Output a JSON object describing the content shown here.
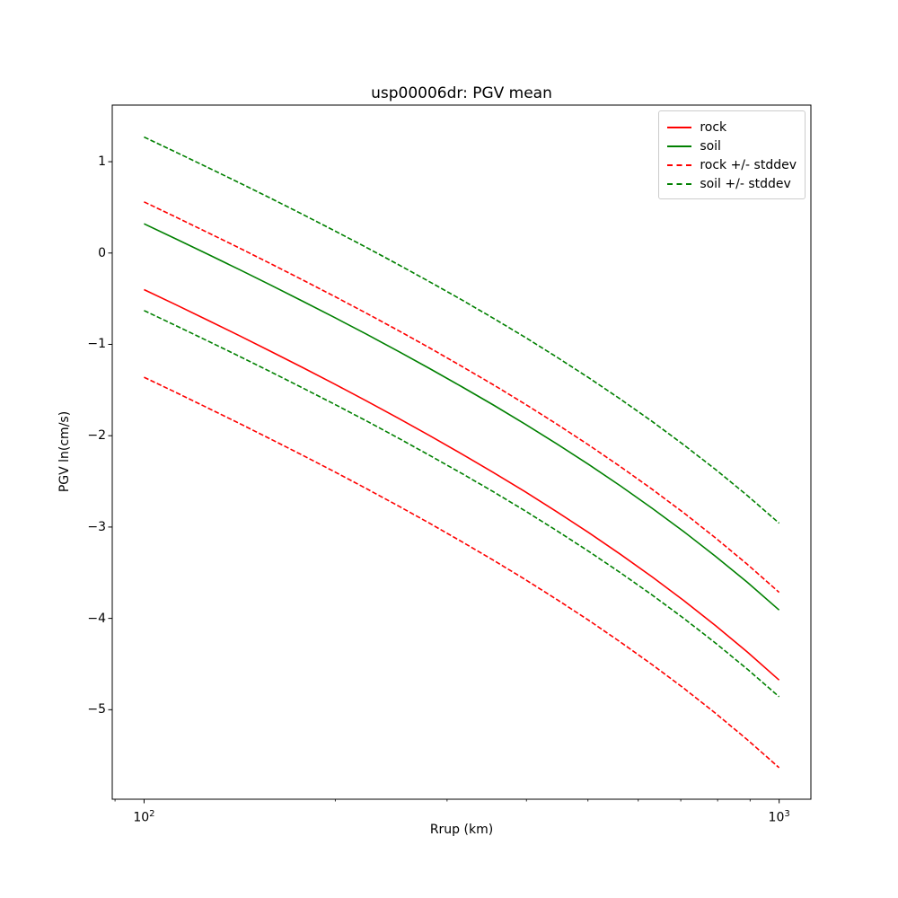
{
  "page": {
    "background": "#ffffff"
  },
  "chart_data": {
    "type": "line",
    "title": "usp00006dr: PGV mean",
    "xlabel": "Rrup (km)",
    "ylabel": "PGV ln(cm/s)",
    "xscale": "log",
    "yscale": "linear",
    "grid": false,
    "xlim": [
      89.1,
      1122
    ],
    "ylim": [
      -5.98,
      1.62
    ],
    "xticks": [
      {
        "value": 100,
        "base": "10",
        "exp": "2"
      },
      {
        "value": 1000,
        "base": "10",
        "exp": "3"
      }
    ],
    "yticks": [
      1,
      0,
      -1,
      -2,
      -3,
      -4,
      -5
    ],
    "x": [
      100,
      112.2,
      125.9,
      141.3,
      158.5,
      177.8,
      199.5,
      223.9,
      251.2,
      281.8,
      316.2,
      354.8,
      398.1,
      446.7,
      501.2,
      562.3,
      631,
      708,
      794.3,
      891.3,
      1000
    ],
    "series": [
      {
        "name": "rock",
        "color": "#ff0000",
        "style": "solid",
        "values": [
          -0.4,
          -0.566,
          -0.735,
          -0.905,
          -1.079,
          -1.255,
          -1.435,
          -1.619,
          -1.807,
          -2.0,
          -2.199,
          -2.403,
          -2.614,
          -2.833,
          -3.061,
          -3.298,
          -3.546,
          -3.806,
          -4.08,
          -4.369,
          -4.675
        ]
      },
      {
        "name": "soil",
        "color": "#008000",
        "style": "solid",
        "values": [
          0.32,
          0.155,
          -0.012,
          -0.181,
          -0.353,
          -0.528,
          -0.706,
          -0.888,
          -1.075,
          -1.266,
          -1.462,
          -1.664,
          -1.873,
          -2.09,
          -2.315,
          -2.549,
          -2.794,
          -3.051,
          -3.321,
          -3.606,
          -3.908
        ]
      },
      {
        "name": "rock + stddev",
        "color": "#ff0000",
        "style": "dashed",
        "values": [
          0.56,
          0.394,
          0.225,
          0.055,
          -0.119,
          -0.295,
          -0.475,
          -0.659,
          -0.847,
          -1.04,
          -1.239,
          -1.443,
          -1.654,
          -1.873,
          -2.101,
          -2.338,
          -2.586,
          -2.846,
          -3.12,
          -3.409,
          -3.715
        ]
      },
      {
        "name": "rock - stddev",
        "color": "#ff0000",
        "style": "dashed",
        "values": [
          -1.36,
          -1.526,
          -1.695,
          -1.865,
          -2.039,
          -2.215,
          -2.395,
          -2.579,
          -2.767,
          -2.96,
          -3.159,
          -3.363,
          -3.574,
          -3.793,
          -4.021,
          -4.258,
          -4.506,
          -4.766,
          -5.04,
          -5.329,
          -5.635
        ]
      },
      {
        "name": "soil + stddev",
        "color": "#008000",
        "style": "dashed",
        "values": [
          1.27,
          1.105,
          0.938,
          0.769,
          0.597,
          0.422,
          0.244,
          0.062,
          -0.125,
          -0.316,
          -0.512,
          -0.714,
          -0.923,
          -1.14,
          -1.365,
          -1.599,
          -1.844,
          -2.101,
          -2.371,
          -2.656,
          -2.958
        ]
      },
      {
        "name": "soil - stddev",
        "color": "#008000",
        "style": "dashed",
        "values": [
          -0.63,
          -0.795,
          -0.962,
          -1.131,
          -1.303,
          -1.478,
          -1.656,
          -1.838,
          -2.025,
          -2.216,
          -2.412,
          -2.614,
          -2.823,
          -3.04,
          -3.265,
          -3.499,
          -3.744,
          -4.001,
          -4.271,
          -4.556,
          -4.858
        ]
      }
    ],
    "legend": {
      "position": "upper right",
      "entries": [
        {
          "label": "rock",
          "color": "#ff0000",
          "style": "solid"
        },
        {
          "label": "soil",
          "color": "#008000",
          "style": "solid"
        },
        {
          "label": "rock +/- stddev",
          "color": "#ff0000",
          "style": "dashed"
        },
        {
          "label": "soil +/- stddev",
          "color": "#008000",
          "style": "dashed"
        }
      ]
    }
  }
}
